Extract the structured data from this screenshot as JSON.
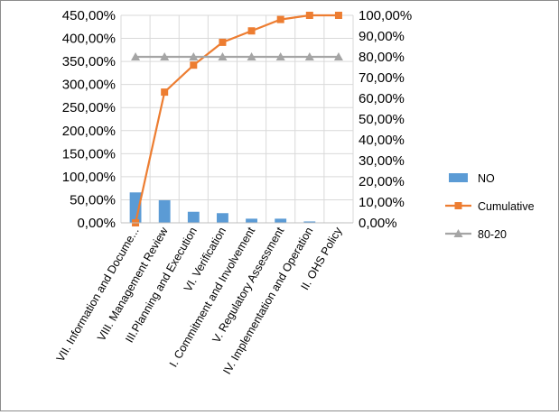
{
  "chart_data": {
    "type": "bar",
    "title": "",
    "xlabel": "",
    "ylabel": "",
    "categories": [
      "VII. Information and Docume...",
      "VIII. Management Review",
      "III.Planning and Execution",
      "VI. Verification",
      "I. Commitment and Involvement",
      "V. Regulatory Assessment",
      "IV. Implementation and Operation",
      "II. OHS Policy"
    ],
    "series": [
      {
        "name": "NO",
        "type": "bar",
        "axis": "left",
        "color": "#5b9bd5",
        "values": [
          66,
          49,
          24,
          21,
          9,
          9,
          3,
          1
        ]
      },
      {
        "name": "Cumulative",
        "type": "line",
        "axis": "right",
        "color": "#ed7d31",
        "marker": "square",
        "values": [
          0,
          63,
          76,
          87,
          92.5,
          98,
          100,
          100
        ]
      },
      {
        "name": "80-20",
        "type": "line",
        "axis": "right",
        "color": "#a5a5a5",
        "marker": "triangle",
        "values": [
          80,
          80,
          80,
          80,
          80,
          80,
          80,
          80
        ]
      }
    ],
    "y_left": {
      "ylim": [
        0,
        450
      ],
      "ticks": [
        "0,00%",
        "50,00%",
        "100,00%",
        "150,00%",
        "200,00%",
        "250,00%",
        "300,00%",
        "350,00%",
        "400,00%",
        "450,00%"
      ]
    },
    "y_right": {
      "ylim": [
        0,
        100
      ],
      "ticks": [
        "0,00%",
        "10,00%",
        "20,00%",
        "30,00%",
        "40,00%",
        "50,00%",
        "60,00%",
        "70,00%",
        "80,00%",
        "90,00%",
        "100,00%"
      ]
    },
    "grid": true,
    "legend_position": "right"
  }
}
